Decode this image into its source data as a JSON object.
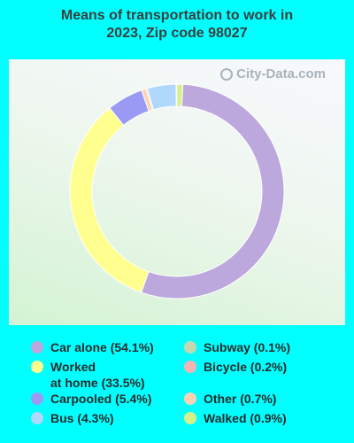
{
  "title_lines": [
    "Means of transportation to work in",
    "2023, Zip code 98027"
  ],
  "watermark": "City-Data.com",
  "chart_data": {
    "type": "pie",
    "donut": true,
    "title": "Means of transportation to work in 2023, Zip code 98027",
    "slices": [
      {
        "label": "Car alone",
        "value": 54.1,
        "color": "#bca8dc",
        "legend": "Car alone (54.1%)"
      },
      {
        "label": "Worked at home",
        "value": 33.5,
        "color": "#ffff90",
        "legend": "Worked\nat home (33.5%)"
      },
      {
        "label": "Carpooled",
        "value": 5.4,
        "color": "#9a9af5",
        "legend": "Carpooled (5.4%)"
      },
      {
        "label": "Other",
        "value": 0.7,
        "color": "#fbd3b4",
        "legend": "Other (0.7%)"
      },
      {
        "label": "Bicycle",
        "value": 0.2,
        "color": "#f2b4b4",
        "legend": "Bicycle (0.2%)"
      },
      {
        "label": "Bus",
        "value": 4.3,
        "color": "#b0d8fb",
        "legend": "Bus (4.3%)"
      },
      {
        "label": "Subway",
        "value": 0.1,
        "color": "#c4d8b0",
        "legend": "Subway (0.1%)"
      },
      {
        "label": "Walked",
        "value": 0.9,
        "color": "#d6f08a",
        "legend": "Walked (0.9%)"
      }
    ],
    "legend_order_left": [
      "Car alone",
      "Worked at home",
      "Carpooled",
      "Bus"
    ],
    "legend_order_right": [
      "Subway",
      "Bicycle",
      "Other",
      "Walked"
    ]
  }
}
